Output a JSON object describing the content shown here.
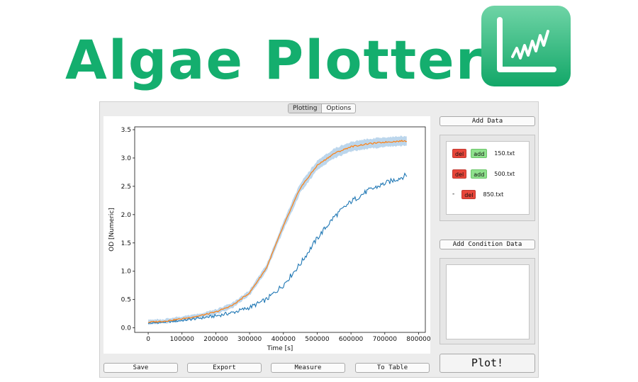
{
  "header": {
    "title": "Algae Plotter",
    "brand_color": "#14ae6e",
    "logo_icon": "chart-wave-icon"
  },
  "tabs": [
    {
      "label": "Plotting",
      "active": true
    },
    {
      "label": "Options",
      "active": false
    }
  ],
  "sidebar": {
    "add_data_label": "Add Data",
    "files": [
      {
        "name": "150.txt",
        "controls": [
          "del",
          "add"
        ]
      },
      {
        "name": "500.txt",
        "controls": [
          "del",
          "add"
        ]
      },
      {
        "name": "850.txt",
        "prefix": "-",
        "controls": [
          "del"
        ]
      }
    ],
    "add_condition_label": "Add Condition Data",
    "plot_label": "Plot!"
  },
  "bottom_buttons": {
    "save": "Save",
    "export": "Export",
    "measure": "Measure",
    "to_table": "To Table"
  },
  "chart_data": {
    "type": "line",
    "xlabel": "Time [s]",
    "ylabel": "OD [Numeric]",
    "xlim": [
      -40000,
      820000
    ],
    "ylim": [
      -0.08,
      3.55
    ],
    "xticks": [
      0,
      100000,
      200000,
      300000,
      400000,
      500000,
      600000,
      700000,
      800000
    ],
    "xtick_labels": [
      "0",
      "100000",
      "200000",
      "300000",
      "400000",
      "500000",
      "600000",
      "700000",
      "800000"
    ],
    "yticks": [
      0.0,
      0.5,
      1.0,
      1.5,
      2.0,
      2.5,
      3.0,
      3.5
    ],
    "ytick_labels": [
      "0.0",
      "0.5",
      "1.0",
      "1.5",
      "2.0",
      "2.5",
      "3.0",
      "3.5"
    ],
    "grid": false,
    "series": [
      {
        "color": "#1f77b4",
        "x": [
          0,
          50000,
          100000,
          150000,
          200000,
          250000,
          300000,
          350000,
          400000,
          450000,
          500000,
          550000,
          600000,
          650000,
          700000,
          750000,
          765000
        ],
        "y": [
          0.08,
          0.1,
          0.13,
          0.17,
          0.21,
          0.27,
          0.36,
          0.5,
          0.76,
          1.13,
          1.58,
          1.96,
          2.23,
          2.42,
          2.55,
          2.66,
          2.7
        ]
      },
      {
        "color": "#ff7f0e",
        "band_color": "#a6c8e6",
        "x": [
          0,
          50000,
          100000,
          150000,
          200000,
          250000,
          300000,
          350000,
          400000,
          450000,
          500000,
          550000,
          600000,
          650000,
          700000,
          750000,
          765000
        ],
        "y": [
          0.1,
          0.12,
          0.16,
          0.21,
          0.28,
          0.4,
          0.62,
          1.06,
          1.8,
          2.47,
          2.87,
          3.08,
          3.2,
          3.25,
          3.28,
          3.3,
          3.3
        ]
      }
    ]
  }
}
